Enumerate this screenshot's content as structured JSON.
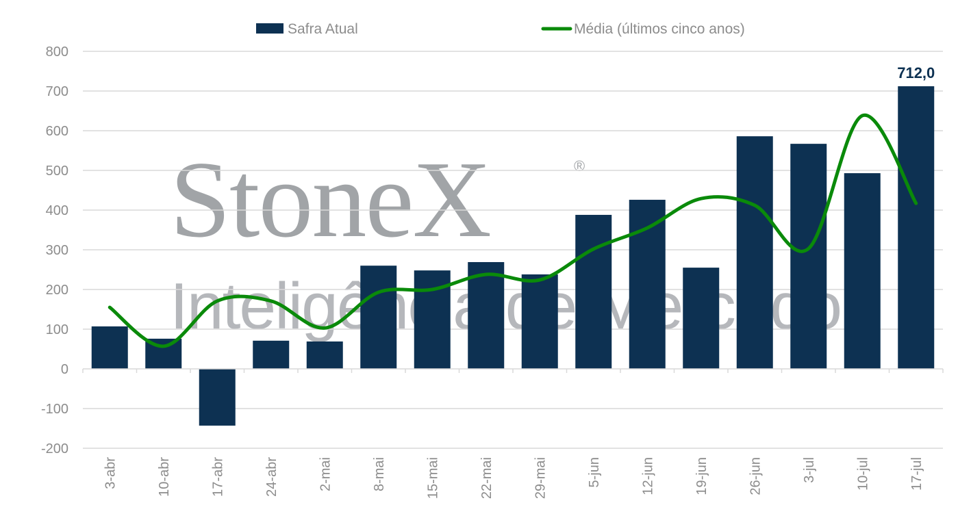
{
  "chart_data": {
    "type": "bar",
    "title": "",
    "xlabel": "",
    "ylabel": "",
    "ylim": [
      -200,
      800
    ],
    "yticks": [
      -200,
      -100,
      0,
      100,
      200,
      300,
      400,
      500,
      600,
      700,
      800
    ],
    "grid": true,
    "legend_position": "top",
    "categories": [
      "3-abr",
      "10-abr",
      "17-abr",
      "24-abr",
      "2-mai",
      "8-mai",
      "15-mai",
      "22-mai",
      "29-mai",
      "5-jun",
      "12-jun",
      "19-jun",
      "26-jun",
      "3-jul",
      "10-jul",
      "17-jul"
    ],
    "series": [
      {
        "name": "Safra Atual",
        "type": "bar",
        "color": "#0d3152",
        "values": [
          107,
          76,
          -143,
          71,
          69,
          260,
          248,
          269,
          238,
          388,
          426,
          255,
          586,
          567,
          493,
          712
        ]
      },
      {
        "name": "Média (últimos cinco anos)",
        "type": "line",
        "color": "#0a8a0a",
        "values": [
          155,
          57,
          171,
          171,
          103,
          193,
          200,
          238,
          224,
          302,
          355,
          429,
          412,
          303,
          638,
          417
        ]
      }
    ],
    "annotations": [
      {
        "category": "17-jul",
        "text": "712,0"
      }
    ]
  },
  "watermark": {
    "brand": "StoneX",
    "registered": "®",
    "tagline": "Inteligência de Mercado"
  }
}
